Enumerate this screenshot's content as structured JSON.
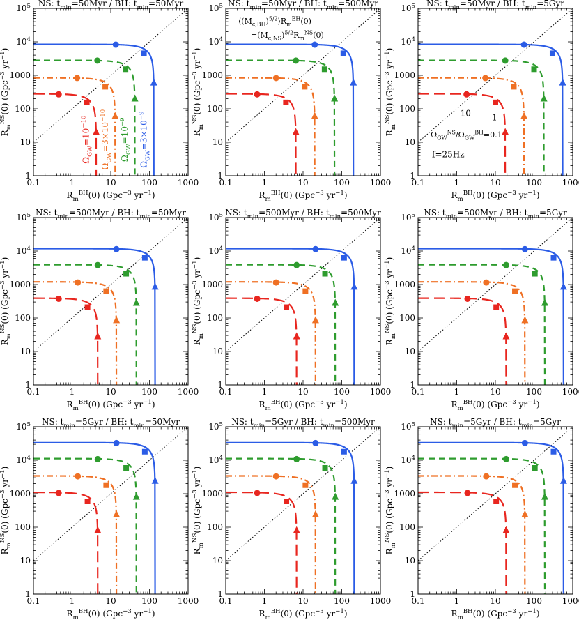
{
  "figure": {
    "xlabel_main": "R",
    "xlabel_sub": "m",
    "xlabel_sup": "BH",
    "xlabel_rest": "(0)  (Gpc",
    "xlabel_exp": "−3",
    "xlabel_end": " yr",
    "xlabel_exp2": "−1",
    "xlabel_close": ")",
    "ylabel_main": "R",
    "ylabel_sub": "m",
    "ylabel_sup": "NS",
    "ylabel_rest": "(0)  (Gpc",
    "ylabel_exp": "−3",
    "ylabel_end": " yr",
    "ylabel_exp2": "−1",
    "ylabel_close": ")",
    "xticks": [
      "0.1",
      "1",
      "10",
      "100",
      "1000"
    ],
    "yticks": [
      {
        "v": 1,
        "t": "1"
      },
      {
        "v": 10,
        "t": "10"
      },
      {
        "v": 100,
        "t": "100"
      },
      {
        "v": 1000,
        "t": "1000"
      },
      {
        "v": 10000,
        "t": "10",
        "e": "4"
      },
      {
        "v": 100000,
        "t": "10",
        "e": "5"
      }
    ]
  },
  "legend_text": {
    "curve_labels": [
      {
        "pre": "Ω",
        "sub": "GW",
        "rest": "=10",
        "exp": "−10",
        "color": "#e8261f"
      },
      {
        "pre": "Ω",
        "sub": "GW",
        "rest": "=3×10",
        "exp": "−10",
        "color": "#ef7024"
      },
      {
        "pre": "Ω",
        "sub": "GW",
        "rest": "=10",
        "exp": "−9",
        "color": "#2e9c2e"
      },
      {
        "pre": "Ω",
        "sub": "GW",
        "rest": "=3×10",
        "exp": "−9",
        "color": "#2b5ce6"
      }
    ],
    "diag_line1": "⟨(M",
    "diag_line1_sub": "c,BH",
    "diag_line1_rest": ")",
    "diag_line1_exp": "5/2",
    "diag_line1_end": "⟩R",
    "diag_line1_sub2": "m",
    "diag_line1_sup2": "BH",
    "diag_line1_close": "(0)",
    "diag_line2": "=(M",
    "diag_line2_sub": "c,NS",
    "diag_line2_rest": ")",
    "diag_line2_exp": "5/2",
    "diag_line2_end": "R",
    "diag_line2_sub2": "m",
    "diag_line2_sup2": "NS",
    "diag_line2_close": "(0)",
    "ratio_pre": "Ω",
    "ratio_sub1": "GW",
    "ratio_sup1": "NS",
    "ratio_mid": "/Ω",
    "ratio_sub2": "GW",
    "ratio_sup2": "BH",
    "ratio_val": "=0.1",
    "freq": "f=25Hz",
    "marker_10": "10",
    "marker_1": "1"
  },
  "colors": {
    "red": "#e8261f",
    "orange": "#ef7024",
    "green": "#2e9c2e",
    "blue": "#2b5ce6"
  },
  "chart_data": [
    {
      "type": "line",
      "title": "NS: t_min=50Myr / BH: t_min=50Myr",
      "title_ns": "NS: t",
      "title_ns_sub": "min",
      "title_ns_val": "=50Myr",
      "title_bh": " / BH: t",
      "title_bh_sub": "min",
      "title_bh_val": "=50Myr",
      "xlim": [
        0.1,
        1000
      ],
      "ylim": [
        1,
        100000
      ],
      "xscale": "log",
      "yscale": "log",
      "series": [
        {
          "name": "Ω_GW=1e-10",
          "color": "#e8261f",
          "style": "longdash",
          "ymax": 280,
          "xmax": 4.2,
          "circle": [
            0.45,
            270
          ],
          "square": [
            2.4,
            155
          ],
          "triangle": [
            4.2,
            20
          ]
        },
        {
          "name": "Ω_GW=3e-10",
          "color": "#ef7024",
          "style": "dashdot",
          "ymax": 840,
          "xmax": 13,
          "circle": [
            1.35,
            830
          ],
          "square": [
            7.2,
            455
          ],
          "triangle": [
            13,
            60
          ]
        },
        {
          "name": "Ω_GW=1e-9",
          "color": "#2e9c2e",
          "style": "dashed",
          "ymax": 2800,
          "xmax": 42,
          "circle": [
            4.5,
            2750
          ],
          "square": [
            24,
            1520
          ],
          "triangle": [
            42,
            200
          ]
        },
        {
          "name": "Ω_GW=3e-9",
          "color": "#2b5ce6",
          "style": "solid",
          "ymax": 8400,
          "xmax": 130,
          "circle": [
            13.5,
            8250
          ],
          "square": [
            72,
            4550
          ],
          "triangle": [
            130,
            600
          ]
        }
      ]
    },
    {
      "type": "line",
      "title": "NS: t_min=50Myr / BH: t_min=500Myr",
      "title_ns": "NS: t",
      "title_ns_sub": "min",
      "title_ns_val": "=50Myr",
      "title_bh": " / BH: t",
      "title_bh_sub": "min",
      "title_bh_val": "=500Myr",
      "xlim": [
        0.1,
        1000
      ],
      "ylim": [
        1,
        100000
      ],
      "xscale": "log",
      "yscale": "log",
      "series": [
        {
          "name": "Ω_GW=1e-10",
          "color": "#e8261f",
          "style": "longdash",
          "ymax": 280,
          "xmax": 6.5,
          "circle": [
            0.65,
            270
          ],
          "square": [
            3.6,
            155
          ],
          "triangle": [
            6.5,
            20
          ]
        },
        {
          "name": "Ω_GW=3e-10",
          "color": "#ef7024",
          "style": "dashdot",
          "ymax": 840,
          "xmax": 20,
          "circle": [
            2.0,
            830
          ],
          "square": [
            11,
            455
          ],
          "triangle": [
            20,
            60
          ]
        },
        {
          "name": "Ω_GW=1e-9",
          "color": "#2e9c2e",
          "style": "dashed",
          "ymax": 2800,
          "xmax": 65,
          "circle": [
            6.5,
            2750
          ],
          "square": [
            36,
            1520
          ],
          "triangle": [
            65,
            200
          ]
        },
        {
          "name": "Ω_GW=3e-9",
          "color": "#2b5ce6",
          "style": "solid",
          "ymax": 8400,
          "xmax": 200,
          "circle": [
            20,
            8250
          ],
          "square": [
            110,
            4550
          ],
          "triangle": [
            200,
            600
          ]
        }
      ]
    },
    {
      "type": "line",
      "title": "NS: t_min=50Myr / BH: t_min=5Gyr",
      "title_ns": "NS: t",
      "title_ns_sub": "min",
      "title_ns_val": "=50Myr",
      "title_bh": " / BH: t",
      "title_bh_sub": "min",
      "title_bh_val": "=5Gyr",
      "xlim": [
        0.1,
        1000
      ],
      "ylim": [
        1,
        100000
      ],
      "xscale": "log",
      "yscale": "log",
      "series": [
        {
          "name": "Ω_GW=1e-10",
          "color": "#e8261f",
          "style": "longdash",
          "ymax": 280,
          "xmax": 18,
          "circle": [
            1.8,
            270
          ],
          "square": [
            10,
            155
          ],
          "triangle": [
            18,
            20
          ]
        },
        {
          "name": "Ω_GW=3e-10",
          "color": "#ef7024",
          "style": "dashdot",
          "ymax": 840,
          "xmax": 55,
          "circle": [
            5.5,
            830
          ],
          "square": [
            30,
            455
          ],
          "triangle": [
            55,
            60
          ]
        },
        {
          "name": "Ω_GW=1e-9",
          "color": "#2e9c2e",
          "style": "dashed",
          "ymax": 2800,
          "xmax": 180,
          "circle": [
            18,
            2750
          ],
          "square": [
            100,
            1520
          ],
          "triangle": [
            180,
            200
          ]
        },
        {
          "name": "Ω_GW=3e-9",
          "color": "#2b5ce6",
          "style": "solid",
          "ymax": 8400,
          "xmax": 550,
          "circle": [
            55,
            8250
          ],
          "square": [
            300,
            4550
          ],
          "triangle": [
            550,
            600
          ]
        }
      ]
    },
    {
      "type": "line",
      "title": "NS: t_min=500Myr / BH: t_min=50Myr",
      "title_ns": "NS: t",
      "title_ns_sub": "min",
      "title_ns_val": "=500Myr",
      "title_bh": " / BH: t",
      "title_bh_sub": "min",
      "title_bh_val": "=50Myr",
      "xlim": [
        0.1,
        1000
      ],
      "ylim": [
        1,
        100000
      ],
      "xscale": "log",
      "yscale": "log",
      "series": [
        {
          "name": "Ω_GW=1e-10",
          "color": "#e8261f",
          "style": "longdash",
          "ymax": 390,
          "xmax": 4.6,
          "circle": [
            0.45,
            375
          ],
          "square": [
            2.5,
            210
          ],
          "triangle": [
            4.6,
            28
          ]
        },
        {
          "name": "Ω_GW=3e-10",
          "color": "#ef7024",
          "style": "dashdot",
          "ymax": 1200,
          "xmax": 14,
          "circle": [
            1.4,
            1150
          ],
          "square": [
            7.6,
            630
          ],
          "triangle": [
            14,
            85
          ]
        },
        {
          "name": "Ω_GW=1e-9",
          "color": "#2e9c2e",
          "style": "dashed",
          "ymax": 3900,
          "xmax": 46,
          "circle": [
            4.6,
            3800
          ],
          "square": [
            25,
            2100
          ],
          "triangle": [
            46,
            280
          ]
        },
        {
          "name": "Ω_GW=3e-9",
          "color": "#2b5ce6",
          "style": "solid",
          "ymax": 11800,
          "xmax": 140,
          "circle": [
            14,
            11400
          ],
          "square": [
            76,
            6300
          ],
          "triangle": [
            140,
            850
          ]
        }
      ]
    },
    {
      "type": "line",
      "title": "NS: t_min=500Myr / BH: t_min=500Myr",
      "title_ns": "NS: t",
      "title_ns_sub": "min",
      "title_ns_val": "=500Myr",
      "title_bh": " / BH: t",
      "title_bh_sub": "min",
      "title_bh_val": "=500Myr",
      "xlim": [
        0.1,
        1000
      ],
      "ylim": [
        1,
        100000
      ],
      "xscale": "log",
      "yscale": "log",
      "series": [
        {
          "name": "Ω_GW=1e-10",
          "color": "#e8261f",
          "style": "longdash",
          "ymax": 390,
          "xmax": 6.8,
          "circle": [
            0.65,
            375
          ],
          "square": [
            3.7,
            210
          ],
          "triangle": [
            6.8,
            28
          ]
        },
        {
          "name": "Ω_GW=3e-10",
          "color": "#ef7024",
          "style": "dashdot",
          "ymax": 1200,
          "xmax": 21,
          "circle": [
            2.0,
            1150
          ],
          "square": [
            11.5,
            630
          ],
          "triangle": [
            21,
            85
          ]
        },
        {
          "name": "Ω_GW=1e-9",
          "color": "#2e9c2e",
          "style": "dashed",
          "ymax": 3900,
          "xmax": 68,
          "circle": [
            6.8,
            3800
          ],
          "square": [
            37,
            2100
          ],
          "triangle": [
            68,
            280
          ]
        },
        {
          "name": "Ω_GW=3e-9",
          "color": "#2b5ce6",
          "style": "solid",
          "ymax": 11800,
          "xmax": 210,
          "circle": [
            21,
            11400
          ],
          "square": [
            115,
            6300
          ],
          "triangle": [
            210,
            850
          ]
        }
      ]
    },
    {
      "type": "line",
      "title": "NS: t_min=500Myr / BH: t_min=5Gyr",
      "title_ns": "NS: t",
      "title_ns_sub": "min",
      "title_ns_val": "=500Myr",
      "title_bh": " / BH: t",
      "title_bh_sub": "min",
      "title_bh_val": "=5Gyr",
      "xlim": [
        0.1,
        1000
      ],
      "ylim": [
        1,
        100000
      ],
      "xscale": "log",
      "yscale": "log",
      "series": [
        {
          "name": "Ω_GW=1e-10",
          "color": "#e8261f",
          "style": "longdash",
          "ymax": 390,
          "xmax": 19,
          "circle": [
            1.9,
            375
          ],
          "square": [
            10.5,
            210
          ],
          "triangle": [
            19,
            28
          ]
        },
        {
          "name": "Ω_GW=3e-10",
          "color": "#ef7024",
          "style": "dashdot",
          "ymax": 1200,
          "xmax": 58,
          "circle": [
            5.8,
            1150
          ],
          "square": [
            32,
            630
          ],
          "triangle": [
            58,
            85
          ]
        },
        {
          "name": "Ω_GW=1e-9",
          "color": "#2e9c2e",
          "style": "dashed",
          "ymax": 3900,
          "xmax": 190,
          "circle": [
            19,
            3800
          ],
          "square": [
            105,
            2100
          ],
          "triangle": [
            190,
            280
          ]
        },
        {
          "name": "Ω_GW=3e-9",
          "color": "#2b5ce6",
          "style": "solid",
          "ymax": 11800,
          "xmax": 580,
          "circle": [
            58,
            11400
          ],
          "square": [
            320,
            6300
          ],
          "triangle": [
            580,
            850
          ]
        }
      ]
    },
    {
      "type": "line",
      "title": "NS: t_min=5Gyr / BH: t_min=50Myr",
      "title_ns": "NS: t",
      "title_ns_sub": "min",
      "title_ns_val": "=5Gyr",
      "title_bh": " / BH: t",
      "title_bh_sub": "min",
      "title_bh_val": "=50Myr",
      "xlim": [
        0.1,
        1000
      ],
      "ylim": [
        1,
        100000
      ],
      "xscale": "log",
      "yscale": "log",
      "series": [
        {
          "name": "Ω_GW=1e-10",
          "color": "#e8261f",
          "style": "longdash",
          "ymax": 1100,
          "xmax": 4.6,
          "circle": [
            0.45,
            1050
          ],
          "square": [
            2.5,
            590
          ],
          "triangle": [
            4.6,
            80
          ]
        },
        {
          "name": "Ω_GW=3e-10",
          "color": "#ef7024",
          "style": "dashdot",
          "ymax": 3400,
          "xmax": 14,
          "circle": [
            1.4,
            3300
          ],
          "square": [
            7.6,
            1800
          ],
          "triangle": [
            14,
            240
          ]
        },
        {
          "name": "Ω_GW=1e-9",
          "color": "#2e9c2e",
          "style": "dashed",
          "ymax": 11200,
          "xmax": 46,
          "circle": [
            4.6,
            10800
          ],
          "square": [
            25,
            5900
          ],
          "triangle": [
            46,
            800
          ]
        },
        {
          "name": "Ω_GW=3e-9",
          "color": "#2b5ce6",
          "style": "solid",
          "ymax": 33500,
          "xmax": 140,
          "circle": [
            14,
            32500
          ],
          "square": [
            76,
            18000
          ],
          "triangle": [
            140,
            2400
          ]
        }
      ]
    },
    {
      "type": "line",
      "title": "NS: t_min=5Gyr / BH: t_min=500Myr",
      "title_ns": "NS: t",
      "title_ns_sub": "min",
      "title_ns_val": "=5Gyr",
      "title_bh": " / BH: t",
      "title_bh_sub": "min",
      "title_bh_val": "=500Myr",
      "xlim": [
        0.1,
        1000
      ],
      "ylim": [
        1,
        100000
      ],
      "xscale": "log",
      "yscale": "log",
      "series": [
        {
          "name": "Ω_GW=1e-10",
          "color": "#e8261f",
          "style": "longdash",
          "ymax": 1100,
          "xmax": 6.8,
          "circle": [
            0.65,
            1050
          ],
          "square": [
            3.7,
            590
          ],
          "triangle": [
            6.8,
            80
          ]
        },
        {
          "name": "Ω_GW=3e-10",
          "color": "#ef7024",
          "style": "dashdot",
          "ymax": 3400,
          "xmax": 21,
          "circle": [
            2.0,
            3300
          ],
          "square": [
            11.5,
            1800
          ],
          "triangle": [
            21,
            240
          ]
        },
        {
          "name": "Ω_GW=1e-9",
          "color": "#2e9c2e",
          "style": "dashed",
          "ymax": 11200,
          "xmax": 68,
          "circle": [
            6.8,
            10800
          ],
          "square": [
            37,
            5900
          ],
          "triangle": [
            68,
            800
          ]
        },
        {
          "name": "Ω_GW=3e-9",
          "color": "#2b5ce6",
          "style": "solid",
          "ymax": 33500,
          "xmax": 210,
          "circle": [
            21,
            32500
          ],
          "square": [
            115,
            18000
          ],
          "triangle": [
            210,
            2400
          ]
        }
      ]
    },
    {
      "type": "line",
      "title": "NS: t_min=5Gyr / BH: t_min=5Gyr",
      "title_ns": "NS: t",
      "title_ns_sub": "min",
      "title_ns_val": "=5Gyr",
      "title_bh": " / BH: t",
      "title_bh_sub": "min",
      "title_bh_val": "=5Gyr",
      "xlim": [
        0.1,
        1000
      ],
      "ylim": [
        1,
        100000
      ],
      "xscale": "log",
      "yscale": "log",
      "series": [
        {
          "name": "Ω_GW=1e-10",
          "color": "#e8261f",
          "style": "longdash",
          "ymax": 1100,
          "xmax": 19,
          "circle": [
            1.9,
            1050
          ],
          "square": [
            10.5,
            590
          ],
          "triangle": [
            19,
            80
          ]
        },
        {
          "name": "Ω_GW=3e-10",
          "color": "#ef7024",
          "style": "dashdot",
          "ymax": 3400,
          "xmax": 58,
          "circle": [
            5.8,
            3300
          ],
          "square": [
            32,
            1800
          ],
          "triangle": [
            58,
            240
          ]
        },
        {
          "name": "Ω_GW=1e-9",
          "color": "#2e9c2e",
          "style": "dashed",
          "ymax": 11200,
          "xmax": 190,
          "circle": [
            19,
            10800
          ],
          "square": [
            105,
            5900
          ],
          "triangle": [
            190,
            800
          ]
        },
        {
          "name": "Ω_GW=3e-9",
          "color": "#2b5ce6",
          "style": "solid",
          "ymax": 33500,
          "xmax": 580,
          "circle": [
            58,
            32500
          ],
          "square": [
            320,
            18000
          ],
          "triangle": [
            580,
            2400
          ]
        }
      ]
    }
  ]
}
